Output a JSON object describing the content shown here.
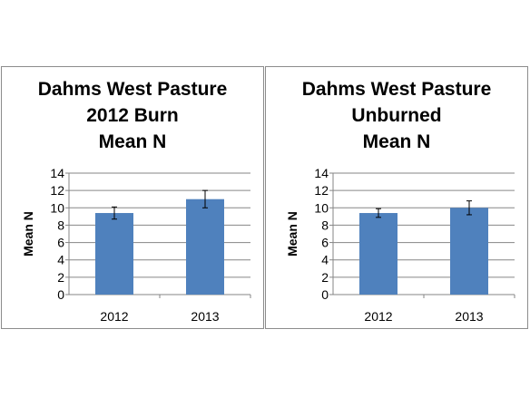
{
  "colors": {
    "bar": "#4f81bd",
    "grid": "#868686",
    "axis": "#868686",
    "error_bar": "#000000"
  },
  "chart_data": [
    {
      "type": "bar",
      "title": [
        "Dahms West Pasture",
        "2012 Burn",
        "Mean N"
      ],
      "ylabel": "Mean N",
      "xlabel": "",
      "categories": [
        "2012",
        "2013"
      ],
      "values": [
        9.4,
        11.0
      ],
      "error": [
        0.7,
        1.0
      ],
      "ylim": [
        0,
        14
      ],
      "yticks": [
        "0",
        "2",
        "4",
        "6",
        "8",
        "10",
        "12",
        "14"
      ],
      "grid": true,
      "legend": "none"
    },
    {
      "type": "bar",
      "title": [
        "Dahms West Pasture",
        "Unburned",
        "Mean N"
      ],
      "ylabel": "Mean N",
      "xlabel": "",
      "categories": [
        "2012",
        "2013"
      ],
      "values": [
        9.4,
        10.0
      ],
      "error": [
        0.5,
        0.8
      ],
      "ylim": [
        0,
        14
      ],
      "yticks": [
        "0",
        "2",
        "4",
        "6",
        "8",
        "10",
        "12",
        "14"
      ],
      "grid": true,
      "legend": "none"
    }
  ]
}
